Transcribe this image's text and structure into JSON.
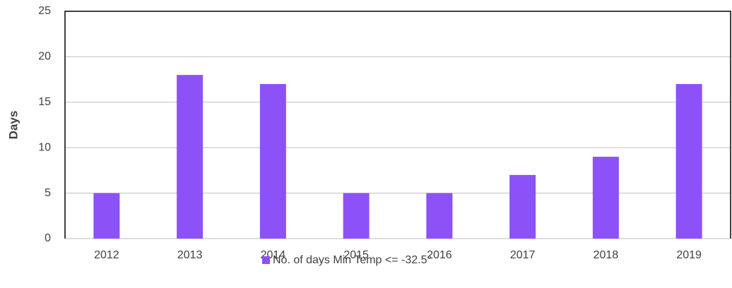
{
  "chart_data": {
    "type": "bar",
    "y_label": "Days",
    "categories": [
      "2012",
      "2013",
      "2014",
      "2015",
      "2016",
      "2017",
      "2018",
      "2019"
    ],
    "series": [
      {
        "name": "No. of days Min Temp <= -32.5°",
        "color": "#8c52f7",
        "values": [
          5,
          18,
          17,
          5,
          5,
          7,
          9,
          17
        ]
      }
    ],
    "ylim": [
      0,
      25
    ],
    "yticks": [
      0,
      5,
      10,
      15,
      20,
      25
    ],
    "grid": true,
    "legend": "bottom"
  }
}
